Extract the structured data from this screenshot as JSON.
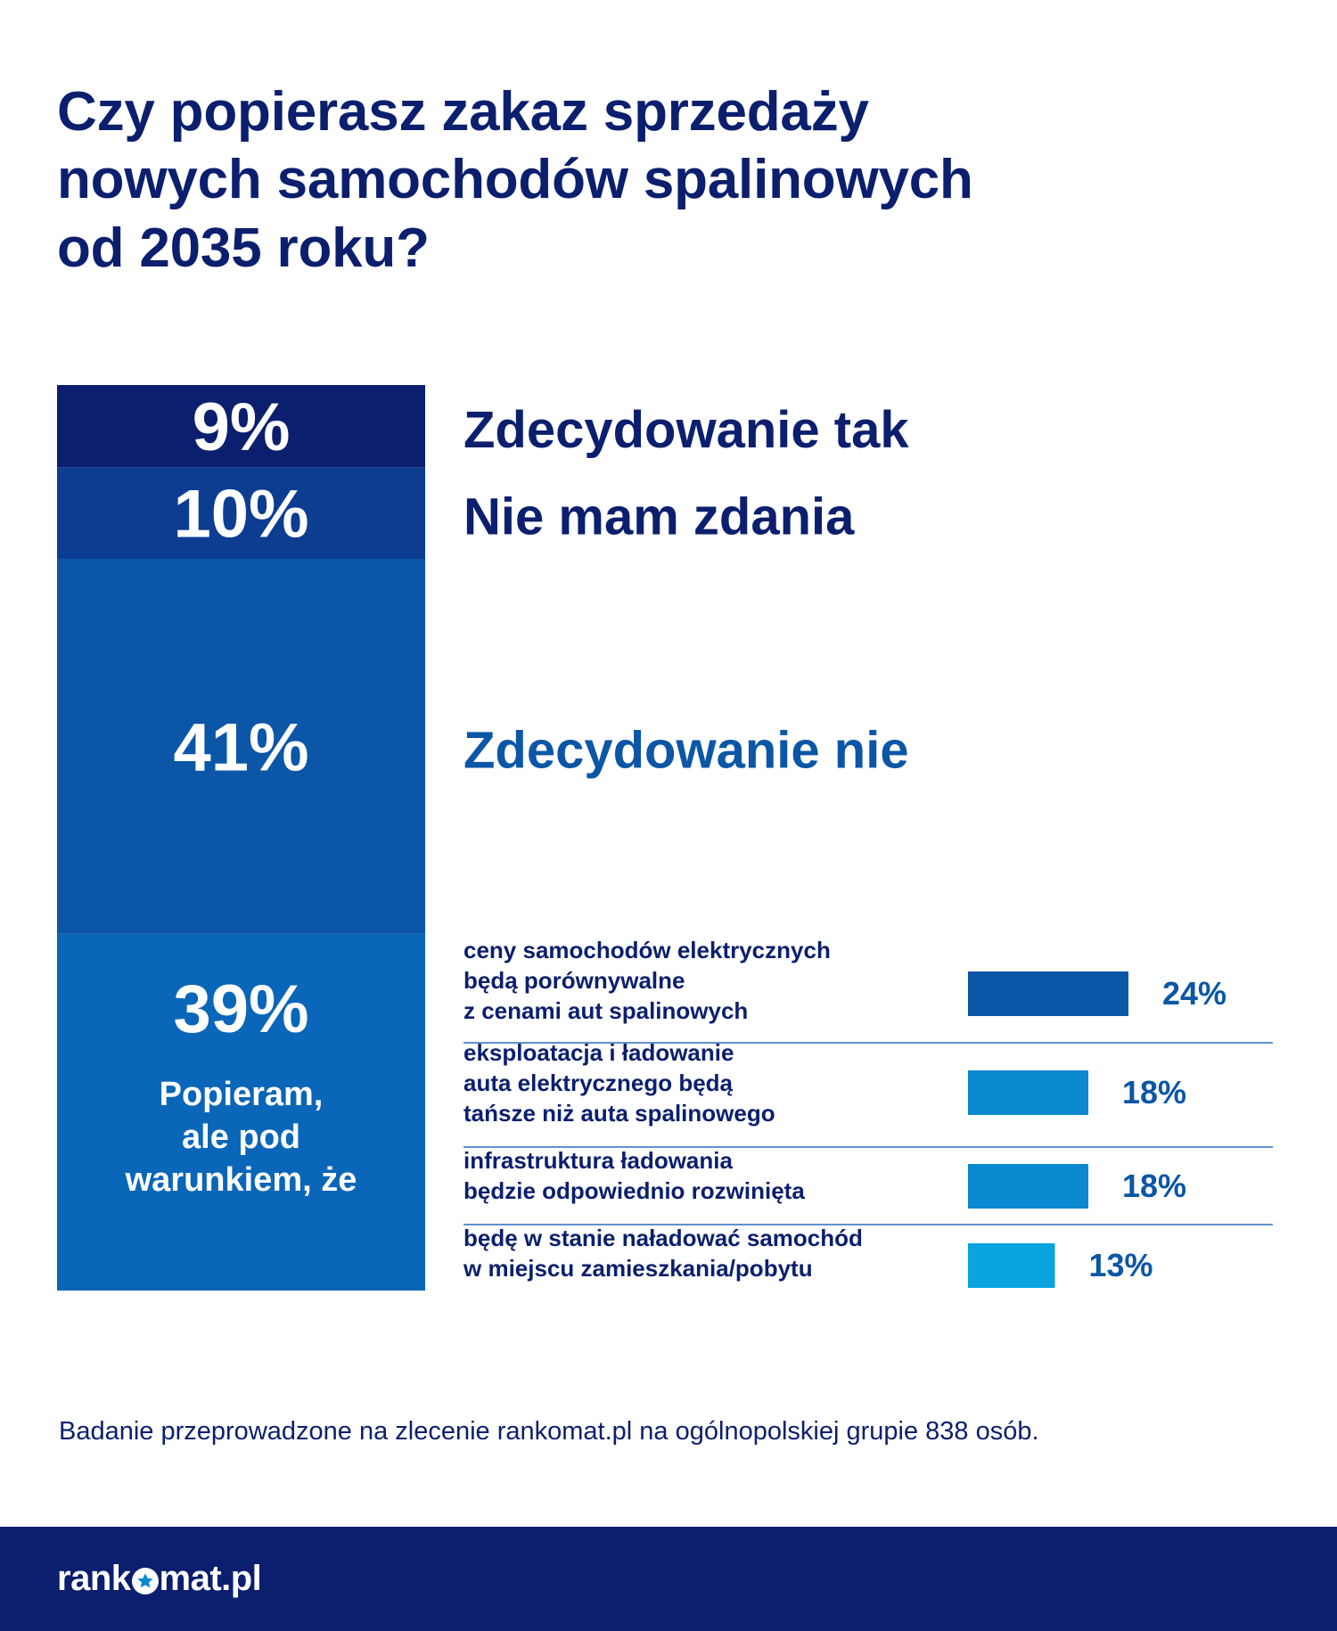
{
  "title_lines": [
    "Czy popierasz zakaz sprzedaży",
    "nowych samochodów spalinowych",
    "od 2035 roku?"
  ],
  "colors": {
    "title": "#0b1f6e",
    "seg_tak": "#0b1f6e",
    "seg_brak": "#0d3d91",
    "seg_nie": "#0b56a6",
    "seg_warunek": "#0a66b8",
    "cond_bar_1": "#0b56a6",
    "cond_bar_2": "#0a88d0",
    "cond_bar_3": "#0a88d0",
    "cond_bar_4": "#09a3e0",
    "separator": "#2f6cbf",
    "footer_bg": "#0b1f6e"
  },
  "chart_data": [
    {
      "type": "bar",
      "subtype": "stacked-100",
      "categories": [
        "Zdecydowanie tak",
        "Nie mam zdania",
        "Zdecydowanie nie",
        "Popieram, ale pod warunkiem, że"
      ],
      "values": [
        9,
        10,
        41,
        39
      ],
      "value_labels": [
        "9%",
        "10%",
        "41%",
        "39%"
      ],
      "category_labels": [
        "Zdecydowanie tak",
        "Nie mam zdania",
        "Zdecydowanie nie",
        ""
      ],
      "segment_note": [
        "Popieram,",
        "ale pod",
        "warunkiem, że"
      ]
    },
    {
      "type": "bar",
      "orientation": "horizontal",
      "categories": [
        [
          "ceny samochodów elektrycznych",
          "będą porównywalne",
          "z cenami aut spalinowych"
        ],
        [
          "eksploatacja i ładowanie",
          "auta elektrycznego będą",
          "tańsze niż auta spalinowego"
        ],
        [
          "infrastruktura ładowania",
          "będzie odpowiednio rozwinięta"
        ],
        [
          "będę w stanie naładować samochód",
          "w miejscu zamieszkania/pobytu"
        ]
      ],
      "values": [
        24,
        18,
        18,
        13
      ],
      "value_labels": [
        "24%",
        "18%",
        "18%",
        "13%"
      ]
    }
  ],
  "footnote": "Badanie przeprowadzone na zlecenie rankomat.pl na ogólnopolskiej grupie 838 osób.",
  "logo": {
    "part1": "rank",
    "part2": "mat.pl",
    "full": "rankomat.pl",
    "icon": "star-icon"
  }
}
